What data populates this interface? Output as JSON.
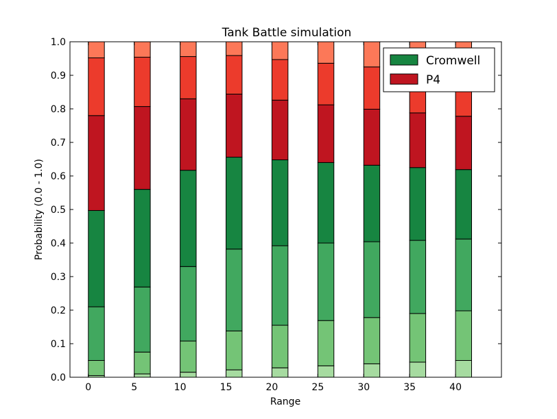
{
  "chart_data": {
    "type": "bar",
    "stacked": true,
    "title": "Tank Battle simulation",
    "xlabel": "Range",
    "ylabel": "Probability (0.0 - 1.0)",
    "xlim": [
      -2,
      45
    ],
    "ylim": [
      0.0,
      1.0
    ],
    "x_ticks": [
      "0",
      "5",
      "10",
      "15",
      "20",
      "25",
      "30",
      "35",
      "40"
    ],
    "y_ticks": [
      "0.0",
      "0.1",
      "0.2",
      "0.3",
      "0.4",
      "0.5",
      "0.6",
      "0.7",
      "0.8",
      "0.9",
      "1.0"
    ],
    "categories": [
      0,
      5,
      10,
      15,
      20,
      25,
      30,
      35,
      40
    ],
    "bar_width": 1.75,
    "segment_colors": [
      "#a6dba0",
      "#74c476",
      "#41a85f",
      "#178541",
      "#bf1520",
      "#ec3b2c",
      "#fc7858"
    ],
    "series": [
      {
        "values": [
          0.005,
          0.01,
          0.015,
          0.022,
          0.028,
          0.034,
          0.04,
          0.045,
          0.05
        ]
      },
      {
        "values": [
          0.045,
          0.065,
          0.093,
          0.116,
          0.127,
          0.135,
          0.138,
          0.145,
          0.148
        ]
      },
      {
        "values": [
          0.16,
          0.194,
          0.222,
          0.244,
          0.237,
          0.231,
          0.226,
          0.218,
          0.214
        ]
      },
      {
        "values": [
          0.287,
          0.291,
          0.287,
          0.274,
          0.256,
          0.24,
          0.228,
          0.217,
          0.207
        ]
      },
      {
        "values": [
          0.283,
          0.247,
          0.213,
          0.188,
          0.178,
          0.172,
          0.167,
          0.163,
          0.159
        ]
      },
      {
        "values": [
          0.172,
          0.147,
          0.126,
          0.115,
          0.121,
          0.124,
          0.126,
          0.128,
          0.13
        ]
      },
      {
        "values": [
          0.048,
          0.046,
          0.044,
          0.041,
          0.053,
          0.064,
          0.075,
          0.084,
          0.092
        ]
      }
    ],
    "legend": {
      "position": "top-right",
      "entries": [
        {
          "label": "Cromwell",
          "color": "#178541"
        },
        {
          "label": "P4",
          "color": "#bf1520"
        }
      ]
    }
  }
}
